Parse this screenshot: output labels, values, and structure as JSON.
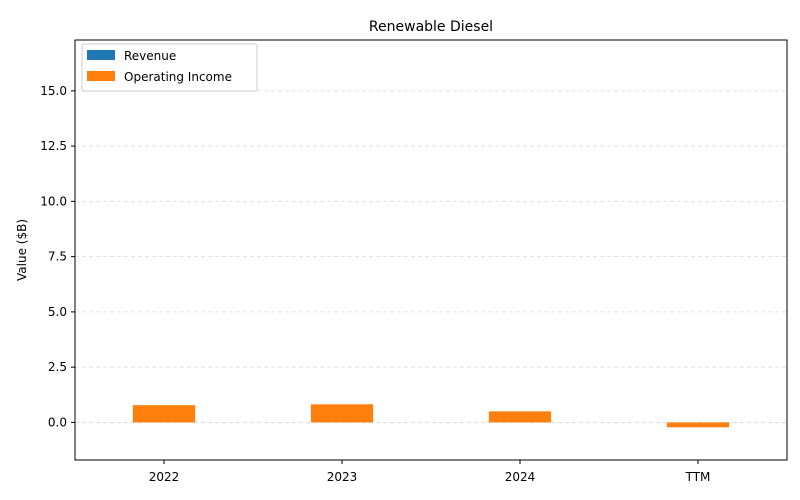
{
  "chart_data": {
    "type": "bar",
    "title": "Renewable Diesel",
    "xlabel": "",
    "ylabel": "Value ($B)",
    "categories": [
      "2022",
      "2023",
      "2024",
      "TTM"
    ],
    "series": [
      {
        "name": "Revenue",
        "color": "#1f77b4",
        "values": [
          0,
          0,
          0,
          0
        ]
      },
      {
        "name": "Operating Income",
        "color": "#ff7f0e",
        "values": [
          0.78,
          0.82,
          0.5,
          -0.22
        ]
      }
    ],
    "ylim": [
      -1.7,
      17.3
    ],
    "yticks": [
      0.0,
      2.5,
      5.0,
      7.5,
      10.0,
      12.5,
      15.0
    ],
    "ytick_labels": [
      "0.0",
      "2.5",
      "5.0",
      "7.5",
      "10.0",
      "12.5",
      "15.0"
    ],
    "grid": true,
    "legend_position": "top-left"
  }
}
